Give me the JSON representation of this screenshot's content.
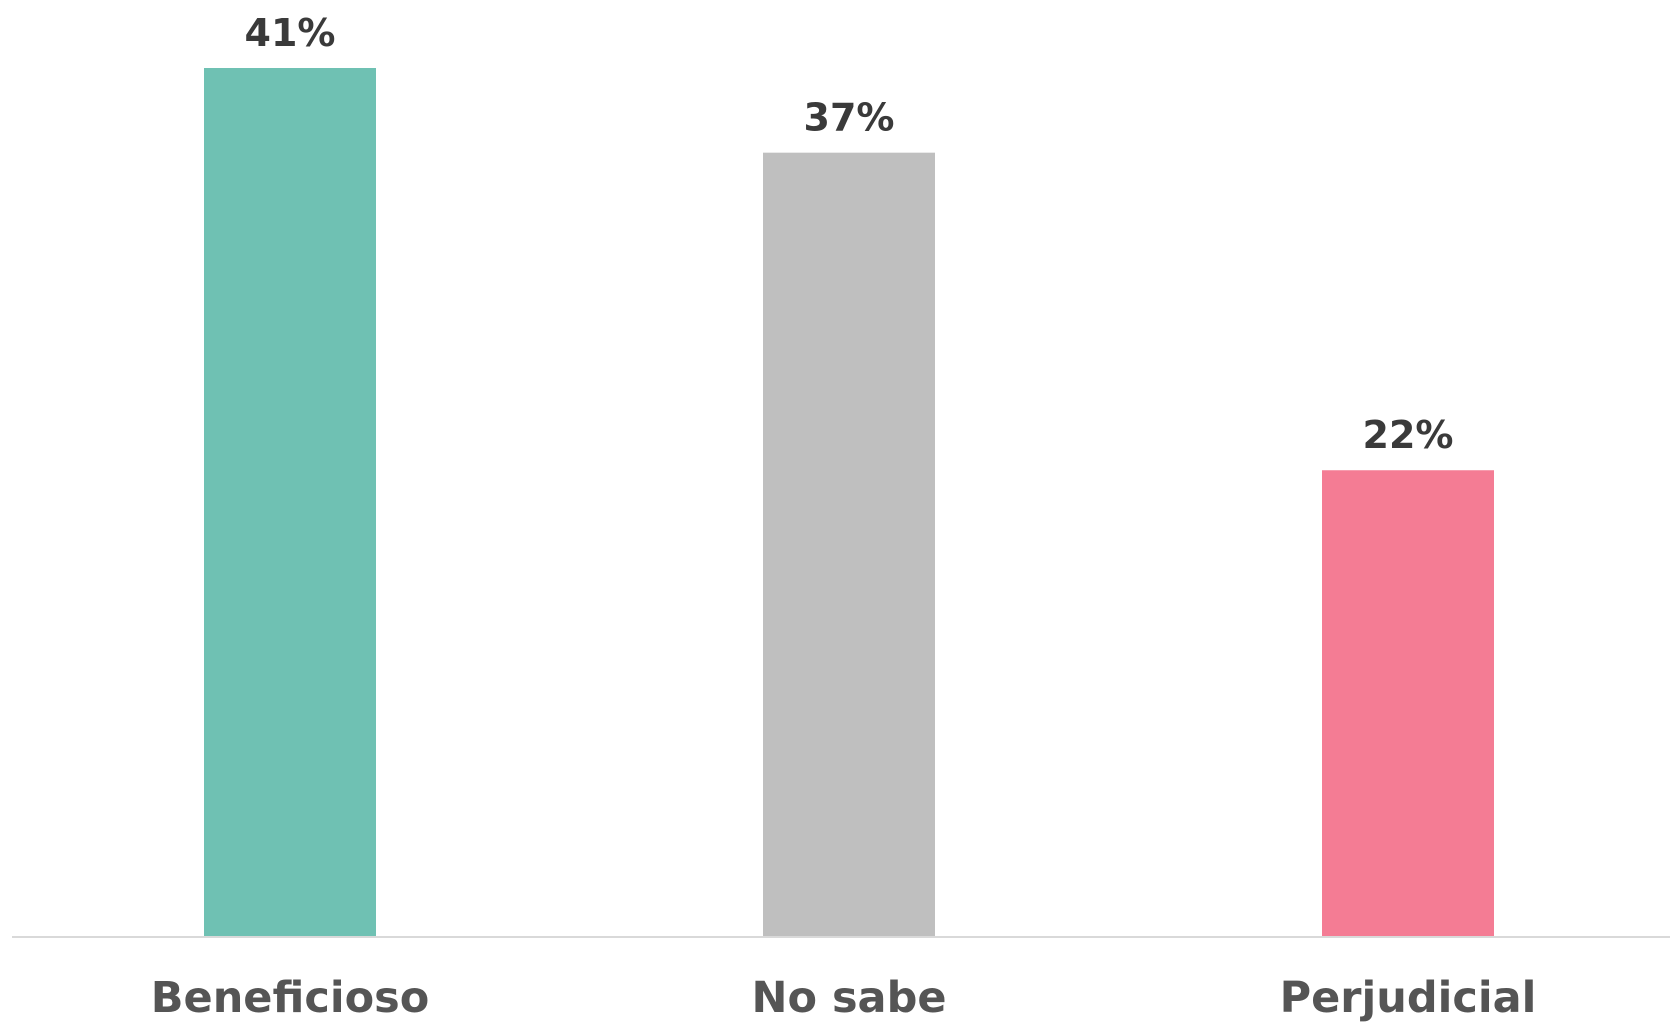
{
  "chart_data": {
    "type": "bar",
    "categories": [
      "Beneficioso",
      "No sabe",
      "Perjudicial"
    ],
    "values": [
      41,
      37,
      22
    ],
    "data_labels": [
      "41%",
      "37%",
      "22%"
    ],
    "colors": [
      "#6fc1b3",
      "#bfbfbf",
      "#f47c94"
    ],
    "title": "",
    "xlabel": "",
    "ylabel": "",
    "ylim": [
      0,
      41
    ],
    "grid": false,
    "legend": "none",
    "axis_color": "#d9d9d9"
  }
}
